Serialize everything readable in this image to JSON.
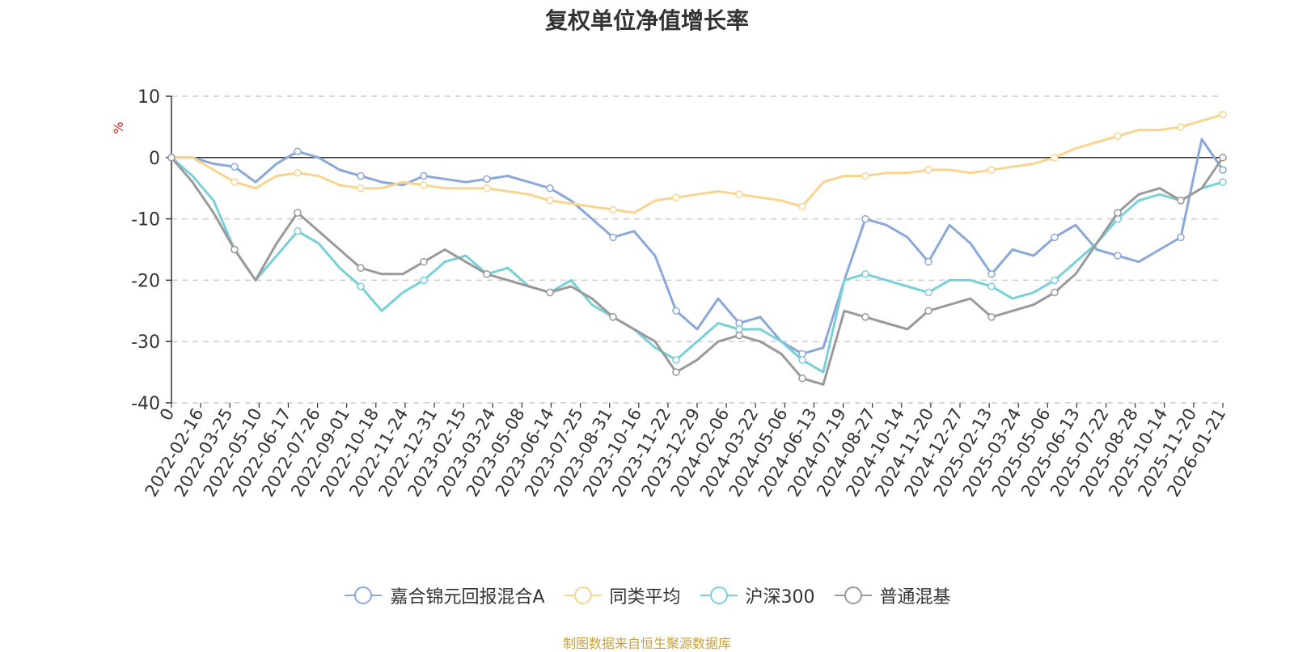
{
  "chart_data": {
    "type": "line",
    "title": "复权单位净值增长率",
    "ylabel": "%",
    "xlabel": "",
    "ylim": [
      -40,
      10
    ],
    "yticks": [
      "10",
      "0",
      "-10",
      "-20",
      "-30",
      "-40"
    ],
    "grid": true,
    "legend_position": "bottom",
    "x_tick_labels": [
      "0",
      "2022-02-16",
      "2022-03-25",
      "2022-05-10",
      "2022-06-17",
      "2022-07-26",
      "2022-09-01",
      "2022-10-18",
      "2022-11-24",
      "2022-12-31",
      "2023-02-15",
      "2023-03-24",
      "2023-05-08",
      "2023-06-14",
      "2023-07-25",
      "2023-08-31",
      "2023-10-16",
      "2023-11-22",
      "2023-12-29",
      "2024-02-06",
      "2024-03-22",
      "2024-05-06",
      "2024-06-13",
      "2024-07-19",
      "2024-08-27",
      "2024-10-14",
      "2024-11-20",
      "2024-12-27",
      "2025-02-13",
      "2025-03-24",
      "2025-05-06",
      "2025-06-13",
      "2025-07-22",
      "2025-08-28",
      "2025-10-14",
      "2025-11-20",
      "2026-01-21"
    ],
    "series": [
      {
        "name": "嘉合锦元回报混合A",
        "color": "#8aa8d8",
        "values": [
          0,
          0,
          -1,
          -1.5,
          -4,
          -1,
          1,
          0,
          -2,
          -3,
          -4,
          -4.5,
          -3,
          -3.5,
          -4,
          -3.5,
          -3,
          -4,
          -5,
          -7,
          -10,
          -13,
          -12,
          -16,
          -25,
          -28,
          -23,
          -27,
          -26,
          -30,
          -32,
          -31,
          -20,
          -10,
          -11,
          -13,
          -17,
          -11,
          -14,
          -19,
          -15,
          -16,
          -13,
          -11,
          -15,
          -16,
          -17,
          -15,
          -13,
          3,
          -2
        ]
      },
      {
        "name": "同类平均",
        "color": "#f8d48e",
        "values": [
          0,
          0,
          -2,
          -4,
          -5,
          -3,
          -2.5,
          -3,
          -4.5,
          -5,
          -5,
          -4,
          -4.5,
          -5,
          -5,
          -5,
          -5.5,
          -6,
          -7,
          -7.5,
          -8,
          -8.5,
          -9,
          -7,
          -6.5,
          -6,
          -5.5,
          -6,
          -6.5,
          -7,
          -8,
          -4,
          -3,
          -3,
          -2.5,
          -2.5,
          -2,
          -2,
          -2.5,
          -2,
          -1.5,
          -1,
          0,
          1.5,
          2.5,
          3.5,
          4.5,
          4.5,
          5,
          6,
          7
        ]
      },
      {
        "name": "沪深300",
        "color": "#79d0d8",
        "values": [
          0,
          -3,
          -7,
          -15,
          -20,
          -16,
          -12,
          -14,
          -18,
          -21,
          -25,
          -22,
          -20,
          -17,
          -16,
          -19,
          -18,
          -21,
          -22,
          -20,
          -24,
          -26,
          -28,
          -31,
          -33,
          -30,
          -27,
          -28,
          -28,
          -30,
          -33,
          -35,
          -20,
          -19,
          -20,
          -21,
          -22,
          -20,
          -20,
          -21,
          -23,
          -22,
          -20,
          -17,
          -14,
          -10,
          -7,
          -6,
          -7,
          -5,
          -4
        ]
      },
      {
        "name": "普通混基",
        "color": "#9a9a9a",
        "values": [
          0,
          -4,
          -9,
          -15,
          -20,
          -14,
          -9,
          -12,
          -15,
          -18,
          -19,
          -19,
          -17,
          -15,
          -17,
          -19,
          -20,
          -21,
          -22,
          -21,
          -23,
          -26,
          -28,
          -30,
          -35,
          -33,
          -30,
          -29,
          -30,
          -32,
          -36,
          -37,
          -25,
          -26,
          -27,
          -28,
          -25,
          -24,
          -23,
          -26,
          -25,
          -24,
          -22,
          -19,
          -14,
          -9,
          -6,
          -5,
          -7,
          -5,
          0
        ]
      }
    ]
  },
  "source_note": "制图数据来自恒生聚源数据库"
}
